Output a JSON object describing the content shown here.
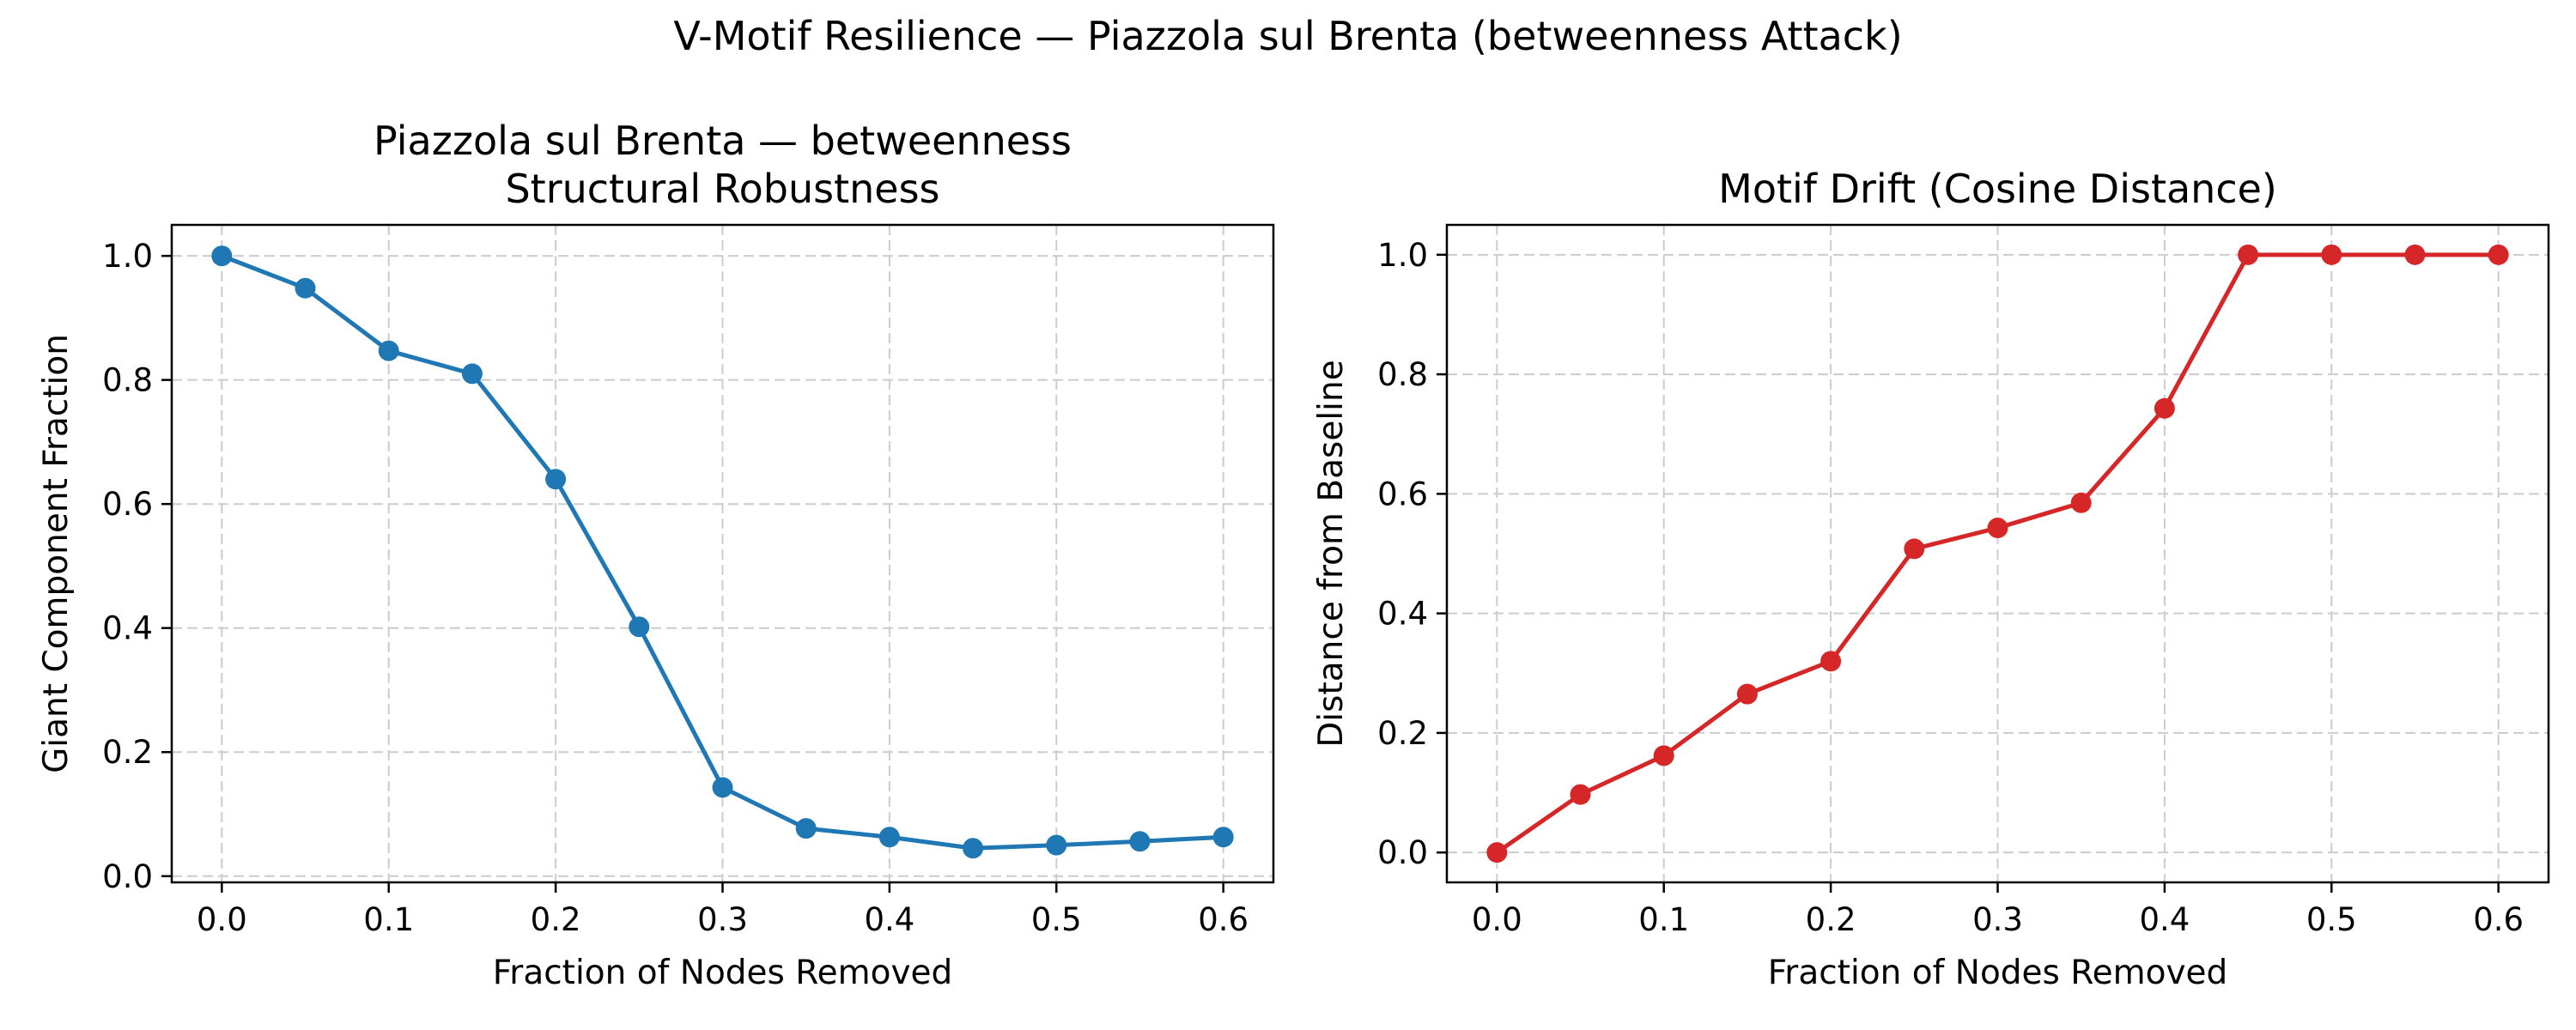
{
  "figure": {
    "suptitle": "V-Motif Resilience — Piazzola sul Brenta (betweenness Attack)"
  },
  "chart_data": [
    {
      "type": "line",
      "title": "Piazzola sul Brenta — betweenness\nStructural Robustness",
      "title_lines": [
        "Piazzola sul Brenta — betweenness",
        "Structural Robustness"
      ],
      "xlabel": "Fraction of Nodes Removed",
      "ylabel": "Giant Component Fraction",
      "xlim": [
        -0.03,
        0.63
      ],
      "ylim": [
        -0.01,
        1.05
      ],
      "xticks": [
        0.0,
        0.1,
        0.2,
        0.3,
        0.4,
        0.5,
        0.6
      ],
      "xtick_labels": [
        "0.0",
        "0.1",
        "0.2",
        "0.3",
        "0.4",
        "0.5",
        "0.6"
      ],
      "yticks": [
        0.0,
        0.2,
        0.4,
        0.6,
        0.8,
        1.0
      ],
      "ytick_labels": [
        "0.0",
        "0.2",
        "0.4",
        "0.6",
        "0.8",
        "1.0"
      ],
      "grid": true,
      "color": "#1f77b4",
      "marker": "circle",
      "x": [
        0.0,
        0.05,
        0.1,
        0.15,
        0.2,
        0.25,
        0.3,
        0.35,
        0.4,
        0.45,
        0.5,
        0.55,
        0.6
      ],
      "y": [
        1.0,
        0.948,
        0.847,
        0.81,
        0.64,
        0.402,
        0.143,
        0.077,
        0.063,
        0.045,
        0.05,
        0.056,
        0.063
      ]
    },
    {
      "type": "line",
      "title": "Motif Drift (Cosine Distance)",
      "title_lines": [
        "Motif Drift (Cosine Distance)"
      ],
      "xlabel": "Fraction of Nodes Removed",
      "ylabel": "Distance from Baseline",
      "xlim": [
        -0.03,
        0.63
      ],
      "ylim": [
        -0.05,
        1.05
      ],
      "xticks": [
        0.0,
        0.1,
        0.2,
        0.3,
        0.4,
        0.5,
        0.6
      ],
      "xtick_labels": [
        "0.0",
        "0.1",
        "0.2",
        "0.3",
        "0.4",
        "0.5",
        "0.6"
      ],
      "yticks": [
        0.0,
        0.2,
        0.4,
        0.6,
        0.8,
        1.0
      ],
      "ytick_labels": [
        "0.0",
        "0.2",
        "0.4",
        "0.6",
        "0.8",
        "1.0"
      ],
      "grid": true,
      "color": "#d62728",
      "marker": "circle",
      "x": [
        0.0,
        0.05,
        0.1,
        0.15,
        0.2,
        0.25,
        0.3,
        0.35,
        0.4,
        0.45,
        0.5,
        0.55,
        0.6
      ],
      "y": [
        0.0,
        0.097,
        0.162,
        0.265,
        0.32,
        0.508,
        0.543,
        0.585,
        0.743,
        1.0,
        1.0,
        1.0,
        1.0
      ]
    }
  ]
}
